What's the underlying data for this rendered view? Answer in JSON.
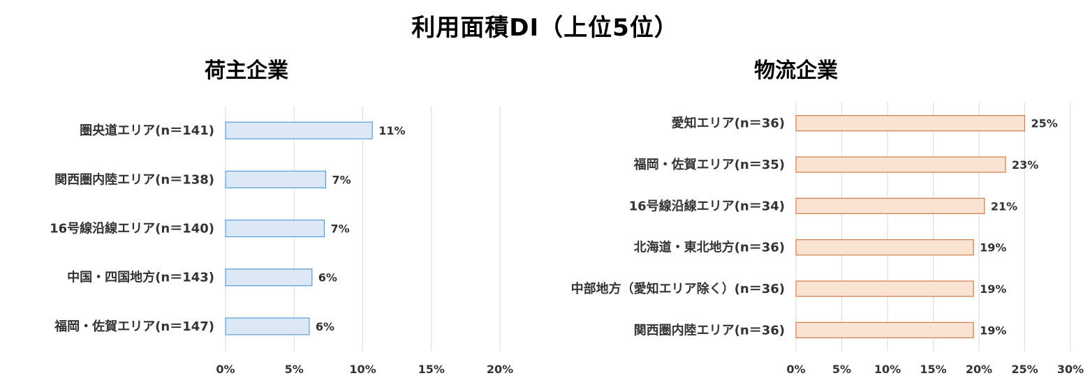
{
  "title": "利用面積DI（上位5位）",
  "chart_data": [
    {
      "type": "bar",
      "orientation": "horizontal",
      "title": "荷主企業",
      "categories": [
        "圏央道エリア(n＝141)",
        "関西圏内陸エリア(n＝138)",
        "16号線沿線エリア(n＝140)",
        "中国・四国地方(n＝143)",
        "福岡・佐賀エリア(n＝147)"
      ],
      "values": [
        10.7,
        7.3,
        7.2,
        6.3,
        6.1
      ],
      "data_labels": [
        "11%",
        "7%",
        "7%",
        "6%",
        "6%"
      ],
      "xlim": [
        0,
        20
      ],
      "ticks": [
        "0%",
        "5%",
        "10%",
        "15%",
        "20%"
      ],
      "grid": true,
      "colors": {
        "fill": "#dce8f6",
        "stroke": "#5b9bd5"
      }
    },
    {
      "type": "bar",
      "orientation": "horizontal",
      "title": "物流企業",
      "categories": [
        "愛知エリア(n＝36)",
        "福岡・佐賀エリア(n＝35)",
        "16号線沿線エリア(n＝34)",
        "北海道・東北地方(n＝36)",
        "中部地方（愛知エリア除く）(n＝36)",
        "関西圏内陸エリア(n＝36)"
      ],
      "values": [
        25,
        22.9,
        20.6,
        19.4,
        19.4,
        19.4
      ],
      "data_labels": [
        "25%",
        "23%",
        "21%",
        "19%",
        "19%",
        "19%"
      ],
      "xlim": [
        0,
        30
      ],
      "ticks": [
        "0%",
        "5%",
        "10%",
        "15%",
        "20%",
        "25%",
        "30%"
      ],
      "grid": true,
      "colors": {
        "fill": "#fbe3d4",
        "stroke": "#d07a45"
      }
    }
  ]
}
